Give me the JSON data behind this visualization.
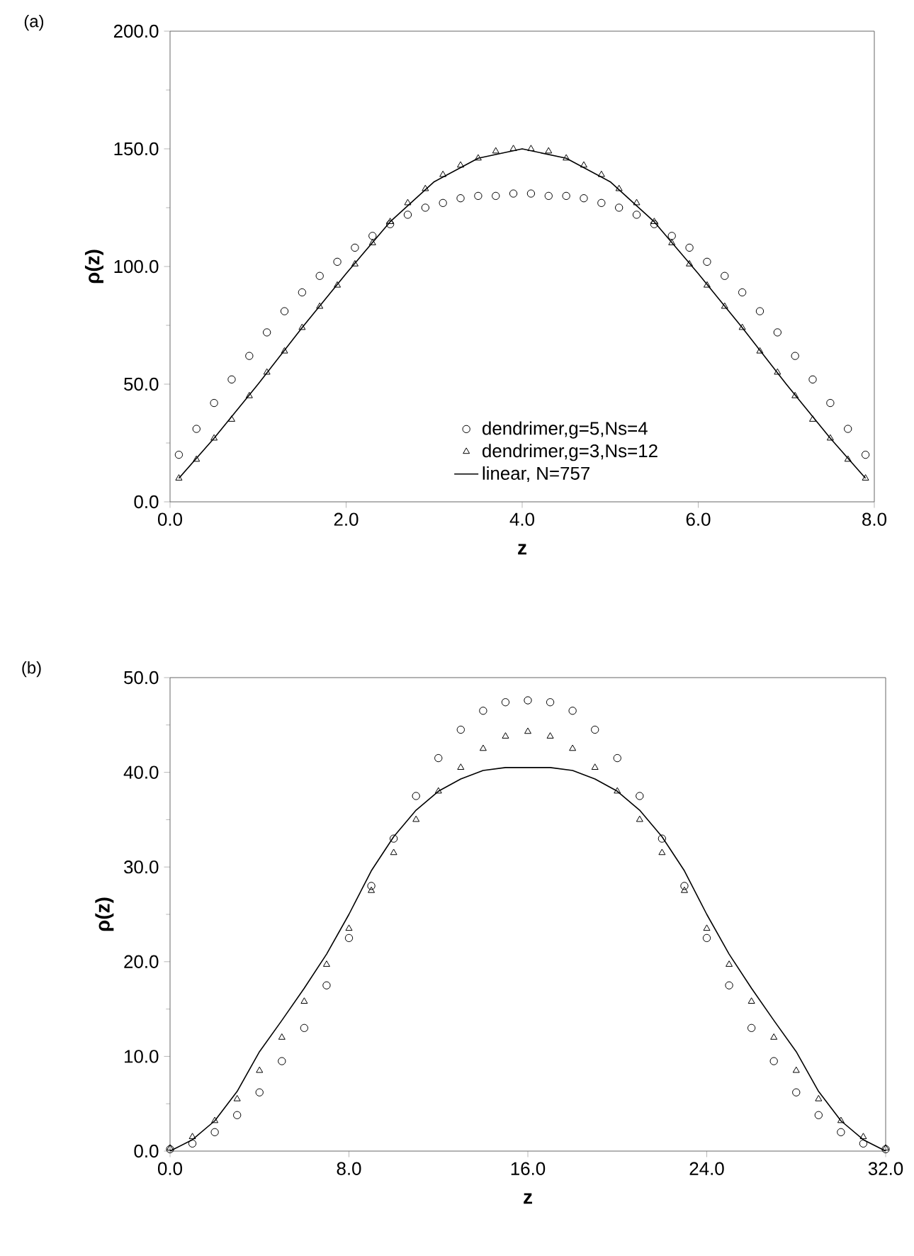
{
  "chart_data": [
    {
      "type": "scatter",
      "title": "(a)",
      "xlabel": "z",
      "ylabel": "ρ(z)",
      "legend": "bottom",
      "xlim": [
        0,
        8
      ],
      "ylim": [
        0,
        200
      ],
      "xticks": [
        {
          "value": 0,
          "label": "0.0"
        },
        {
          "value": 2,
          "label": "2.0"
        },
        {
          "value": 4,
          "label": "4.0"
        },
        {
          "value": 6,
          "label": "6.0"
        },
        {
          "value": 8,
          "label": "8.0"
        }
      ],
      "yticks": [
        {
          "value": 0,
          "label": "0.0"
        },
        {
          "value": 50,
          "label": "50.0"
        },
        {
          "value": 100,
          "label": "100.0"
        },
        {
          "value": 150,
          "label": "150.0"
        },
        {
          "value": 200,
          "label": "200.0"
        }
      ],
      "series": [
        {
          "name": "dendrimer,g=5,Ns=4",
          "type": "scatter",
          "marker": "circle",
          "color": "#000000",
          "x": [
            0.1,
            0.3,
            0.5,
            0.7,
            0.9,
            1.1,
            1.3,
            1.5,
            1.7,
            1.9,
            2.1,
            2.3,
            2.5,
            2.7,
            2.9,
            3.1,
            3.3,
            3.5,
            3.7,
            3.9,
            4.1,
            4.3,
            4.5,
            4.7,
            4.9,
            5.1,
            5.3,
            5.5,
            5.7,
            5.9,
            6.1,
            6.3,
            6.5,
            6.7,
            6.9,
            7.1,
            7.3,
            7.5,
            7.7,
            7.9
          ],
          "values": [
            20,
            31,
            42,
            52,
            62,
            72,
            81,
            89,
            96,
            102,
            108,
            113,
            118,
            122,
            125,
            127,
            129,
            130,
            130,
            131,
            131,
            130,
            130,
            129,
            127,
            125,
            122,
            118,
            113,
            108,
            102,
            96,
            89,
            81,
            72,
            62,
            52,
            42,
            31,
            20
          ]
        },
        {
          "name": "dendrimer,g=3,Ns=12",
          "type": "scatter",
          "marker": "triangle",
          "color": "#000000",
          "x": [
            0.1,
            0.3,
            0.5,
            0.7,
            0.9,
            1.1,
            1.3,
            1.5,
            1.7,
            1.9,
            2.1,
            2.3,
            2.5,
            2.7,
            2.9,
            3.1,
            3.3,
            3.5,
            3.7,
            3.9,
            4.1,
            4.3,
            4.5,
            4.7,
            4.9,
            5.1,
            5.3,
            5.5,
            5.7,
            5.9,
            6.1,
            6.3,
            6.5,
            6.7,
            6.9,
            7.1,
            7.3,
            7.5,
            7.7,
            7.9
          ],
          "values": [
            10,
            18,
            27,
            35,
            45,
            55,
            64,
            74,
            83,
            92,
            101,
            110,
            119,
            127,
            133,
            139,
            143,
            146,
            149,
            150,
            150,
            149,
            146,
            143,
            139,
            133,
            127,
            119,
            110,
            101,
            92,
            83,
            74,
            64,
            55,
            45,
            35,
            27,
            18,
            10
          ]
        },
        {
          "name": "linear, N=757",
          "type": "line",
          "marker": "none",
          "color": "#000000",
          "x": [
            0.1,
            0.5,
            1,
            1.5,
            2,
            2.5,
            3,
            3.5,
            4,
            4.5,
            5,
            5.5,
            6,
            6.5,
            7,
            7.5,
            7.9
          ],
          "values": [
            10,
            27,
            50,
            74,
            97,
            119,
            136,
            146,
            150,
            146,
            136,
            119,
            97,
            74,
            50,
            27,
            10
          ]
        }
      ]
    },
    {
      "type": "scatter",
      "title": "(b)",
      "xlabel": "z",
      "ylabel": "ρ(z)",
      "xlim": [
        0,
        32
      ],
      "ylim": [
        0,
        50
      ],
      "xticks": [
        {
          "value": 0,
          "label": "0.0"
        },
        {
          "value": 8,
          "label": "8.0"
        },
        {
          "value": 16,
          "label": "16.0"
        },
        {
          "value": 24,
          "label": "24.0"
        },
        {
          "value": 32,
          "label": "32.0"
        }
      ],
      "yticks": [
        {
          "value": 0,
          "label": "0.0"
        },
        {
          "value": 10,
          "label": "10.0"
        },
        {
          "value": 20,
          "label": "20.0"
        },
        {
          "value": 30,
          "label": "30.0"
        },
        {
          "value": 40,
          "label": "40.0"
        },
        {
          "value": 50,
          "label": "50.0"
        }
      ],
      "series": [
        {
          "type": "scatter",
          "marker": "circle",
          "color": "#000000",
          "x": [
            0,
            1,
            2,
            3,
            4,
            5,
            6,
            7,
            8,
            9,
            10,
            11,
            12,
            13,
            14,
            15,
            16,
            17,
            18,
            19,
            20,
            21,
            22,
            23,
            24,
            25,
            26,
            27,
            28,
            29,
            30,
            31,
            32
          ],
          "values": [
            0.2,
            0.8,
            2.0,
            3.8,
            6.2,
            9.5,
            13,
            17.5,
            22.5,
            28,
            33,
            37.5,
            41.5,
            44.5,
            46.5,
            47.4,
            47.6,
            47.4,
            46.5,
            44.5,
            41.5,
            37.5,
            33,
            28,
            22.5,
            17.5,
            13,
            9.5,
            6.2,
            3.8,
            2.0,
            0.8,
            0.2
          ]
        },
        {
          "type": "scatter",
          "marker": "triangle",
          "color": "#000000",
          "x": [
            0,
            1,
            2,
            3,
            4,
            5,
            6,
            7,
            8,
            9,
            10,
            11,
            12,
            13,
            14,
            15,
            16,
            17,
            18,
            19,
            20,
            21,
            22,
            23,
            24,
            25,
            26,
            27,
            28,
            29,
            30,
            31,
            32
          ],
          "values": [
            0.3,
            1.5,
            3.2,
            5.5,
            8.5,
            12,
            15.8,
            19.7,
            23.5,
            27.5,
            31.5,
            35,
            38,
            40.5,
            42.5,
            43.8,
            44.3,
            43.8,
            42.5,
            40.5,
            38,
            35,
            31.5,
            27.5,
            23.5,
            19.7,
            15.8,
            12,
            8.5,
            5.5,
            3.2,
            1.5,
            0.3
          ]
        },
        {
          "type": "line",
          "marker": "none",
          "color": "#000000",
          "x": [
            0,
            1,
            2,
            3,
            4,
            5,
            6,
            7,
            8,
            9,
            10,
            11,
            12,
            13,
            14,
            15,
            16,
            17,
            18,
            19,
            20,
            21,
            22,
            23,
            24,
            25,
            26,
            27,
            28,
            29,
            30,
            31,
            32
          ],
          "values": [
            0,
            1.2,
            3.2,
            6.3,
            10.5,
            13.8,
            17.2,
            20.8,
            25,
            29.6,
            33.2,
            36,
            38,
            39.3,
            40.2,
            40.5,
            40.5,
            40.5,
            40.2,
            39.3,
            38,
            36,
            33.2,
            29.6,
            25,
            20.8,
            17.2,
            13.8,
            10.5,
            6.3,
            3.2,
            1.2,
            0
          ]
        }
      ]
    }
  ]
}
